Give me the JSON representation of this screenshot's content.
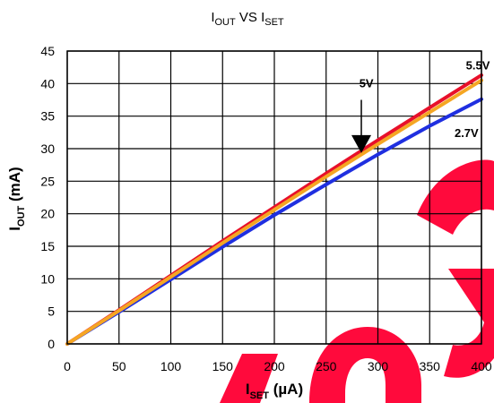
{
  "chart_data": {
    "type": "line",
    "title": {
      "main": "I",
      "sub1": "OUT",
      "mid": " VS I",
      "sub2": "SET"
    },
    "xlabel": {
      "main": "I",
      "sub": "SET",
      "rest": " (µA)"
    },
    "ylabel": {
      "main": "I",
      "sub": "OUT",
      "rest": " (mA)"
    },
    "xlim": [
      0,
      400
    ],
    "ylim": [
      0,
      45
    ],
    "xticks": [
      "0",
      "50",
      "100",
      "150",
      "200",
      "250",
      "300",
      "350",
      "400"
    ],
    "yticks": [
      "0",
      "5",
      "10",
      "15",
      "20",
      "25",
      "30",
      "35",
      "40",
      "45"
    ],
    "grid": true,
    "series": [
      {
        "name": "5.5V",
        "color": "#e8102a",
        "x": [
          0,
          50,
          100,
          150,
          200,
          250,
          300,
          350,
          400
        ],
        "y": [
          0,
          5.2,
          10.5,
          15.8,
          21,
          26.2,
          31.3,
          36.3,
          41.3
        ]
      },
      {
        "name": "5V",
        "color": "#f5a623",
        "x": [
          0,
          50,
          100,
          150,
          200,
          250,
          300,
          350,
          400
        ],
        "y": [
          0,
          5.1,
          10.3,
          15.5,
          20.6,
          25.7,
          30.7,
          35.6,
          40.5
        ]
      },
      {
        "name": "2.7V",
        "color": "#1f2fe0",
        "x": [
          0,
          50,
          100,
          150,
          200,
          250,
          300,
          350,
          400
        ],
        "y": [
          0,
          4.9,
          9.9,
          14.9,
          19.8,
          24.5,
          29.1,
          33.5,
          37.6
        ]
      }
    ],
    "annotations": [
      {
        "text": "5.5V",
        "x": 385,
        "y": 42.2
      },
      {
        "text": "5V",
        "x": 282,
        "y": 39.4
      },
      {
        "text": "2.7V",
        "x": 374,
        "y": 31.8
      }
    ],
    "arrow": {
      "x": 284,
      "y_from": 37.5,
      "y_to": 29.6
    }
  },
  "watermark": {
    "text": "obs",
    "color": "#ff0a3c"
  }
}
